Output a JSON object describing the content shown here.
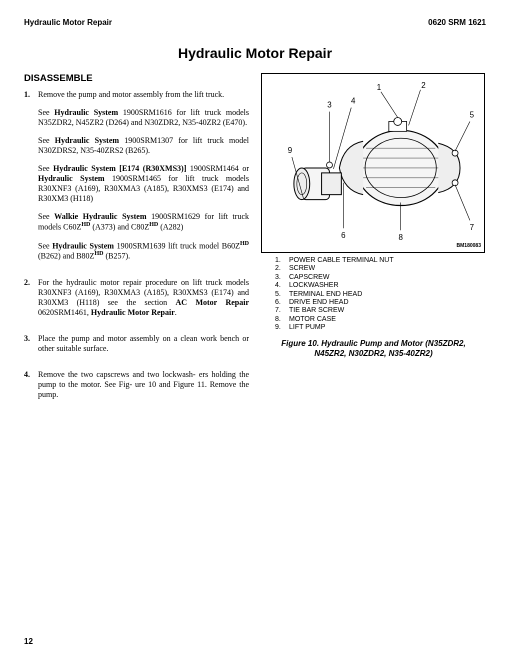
{
  "header": {
    "left": "Hydraulic Motor Repair",
    "right": "0620 SRM 1621"
  },
  "title": "Hydraulic Motor Repair",
  "section_heading": "DISASSEMBLE",
  "steps": [
    {
      "num": "1.",
      "paras": [
        "Remove the pump and motor assembly from the lift truck.",
        "See <b>Hydraulic System</b> 1900SRM1616 for lift truck models N35ZDR2, N45ZR2 (D264) and N30ZDR2, N35-40ZR2 (E470).",
        "See <b>Hydraulic System</b> 1900SRM1307 for lift truck model N30ZDRS2, N35-40ZRS2 (B265).",
        "See <b>Hydraulic System [E174 (R30XMS3)]</b> 1900SRM1464 or <b>Hydraulic System</b> 1900SRM1465 for lift truck models R30XNF3 (A169), R30XMA3 (A185), R30XMS3 (E174) and R30XM3 (H118)",
        "See <b>Walkie Hydraulic System</b> 1900SRM1629 for lift truck models C60Z<span class=\"sup\"><b>HD</b></span> (A373) and C80Z<span class=\"sup\"><b>HD</b></span> (A282)",
        "See <b>Hydraulic System</b> 1900SRM1639 lift truck model B60Z<span class=\"sup\"><b>HD</b></span> (B262) and B80Z<span class=\"sup\"><b>HD</b></span> (B257)."
      ]
    },
    {
      "num": "2.",
      "paras": [
        "For the hydraulic motor repair procedure on lift truck models R30XNF3 (A169), R30XMA3 (A185), R30XMS3 (E174) and R30XM3 (H118) see the section <b>AC Motor Repair</b> 0620SRM1461, <b>Hydraulic Motor Repair</b>."
      ]
    },
    {
      "num": "3.",
      "paras": [
        "Place the pump and motor assembly on a clean work bench or other suitable surface."
      ]
    },
    {
      "num": "4.",
      "paras": [
        "Remove the two capscrews and two lockwash- ers holding the pump to the motor. See Fig- ure 10 and Figure 11. Remove the pump."
      ]
    }
  ],
  "bm": "BM180083",
  "callouts": [
    {
      "n": "1.",
      "t": "POWER CABLE TERMINAL NUT"
    },
    {
      "n": "2.",
      "t": "SCREW"
    },
    {
      "n": "3.",
      "t": "CAPSCREW"
    },
    {
      "n": "4.",
      "t": "LOCKWASHER"
    },
    {
      "n": "5.",
      "t": "TERMINAL END HEAD"
    },
    {
      "n": "6.",
      "t": "DRIVE END HEAD"
    },
    {
      "n": "7.",
      "t": "TIE BAR SCREW"
    },
    {
      "n": "8.",
      "t": "MOTOR CASE"
    },
    {
      "n": "9.",
      "t": "LIFT PUMP"
    }
  ],
  "figure_caption_line1": "Figure 10. Hydraulic Pump and Motor (N35ZDR2,",
  "figure_caption_line2": "N45ZR2, N30ZDR2, N35-40ZR2)",
  "page_number": "12"
}
